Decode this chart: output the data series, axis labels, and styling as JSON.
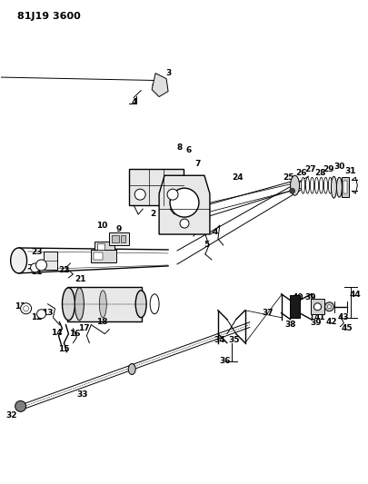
{
  "title": "81J19 3600",
  "bg": "#ffffff",
  "lc": "#000000",
  "fig_w": 4.06,
  "fig_h": 5.33,
  "dpi": 100
}
